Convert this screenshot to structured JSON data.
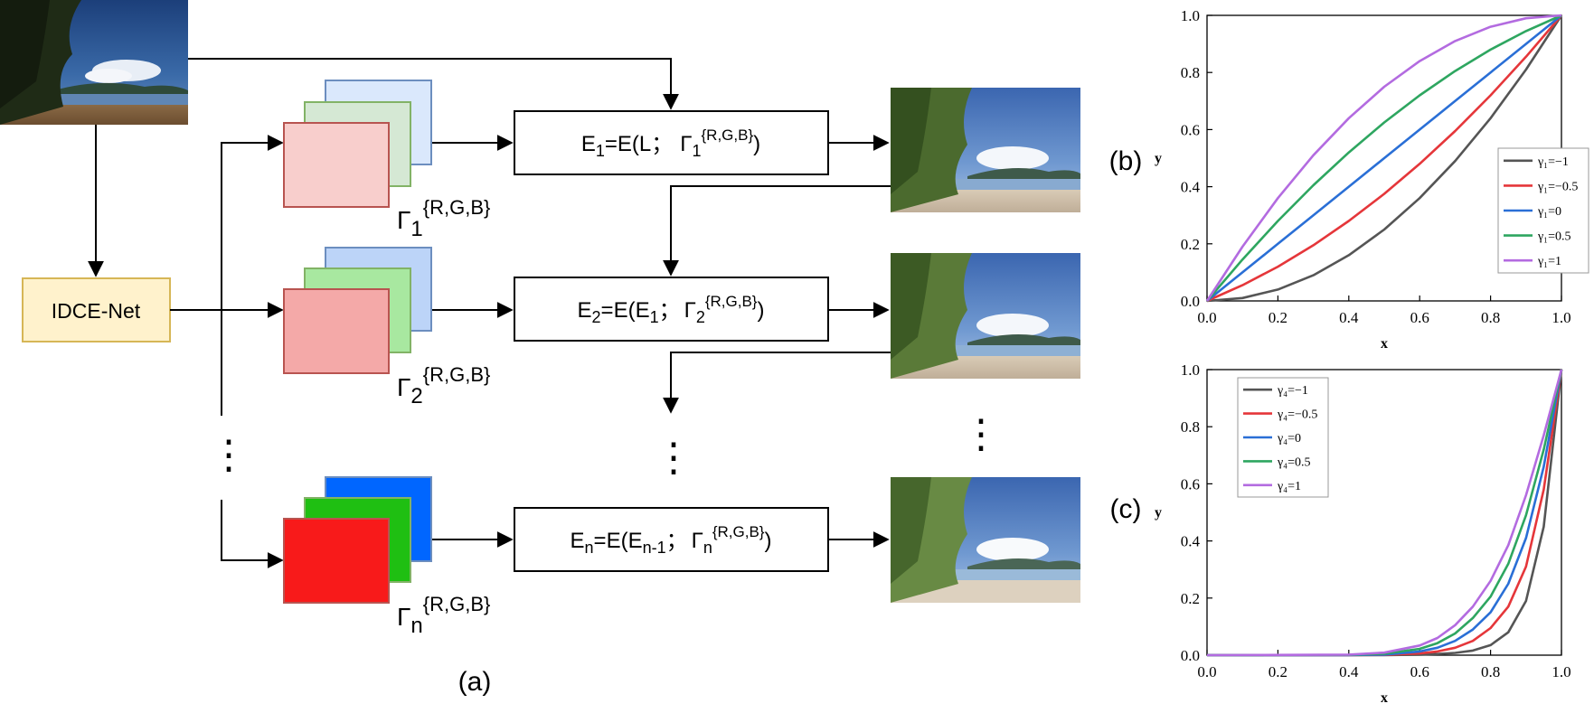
{
  "diagram": {
    "network_label": "IDCE-Net",
    "rows": [
      {
        "gamma_prefix": "Γ",
        "gamma_sub": "1",
        "gamma_sup": "{R,G,B}",
        "eq_e": "E",
        "eq_e_sub": "1",
        "eq_mid": "=E(L；",
        "eq_g": "Γ",
        "eq_g_sub": "1",
        "eq_g_sup": "{R,G,B}",
        "eq_end": ")",
        "colors": {
          "back_fill": "#dae8fc",
          "back_stroke": "#6c8ebf",
          "mid_fill": "#d5e8d4",
          "mid_stroke": "#82b366",
          "front_fill": "#f8cecc",
          "front_stroke": "#b85450"
        }
      },
      {
        "gamma_prefix": "Γ",
        "gamma_sub": "2",
        "gamma_sup": "{R,G,B}",
        "eq_e": "E",
        "eq_e_sub": "2",
        "eq_mid": "=E(E",
        "eq_mid_sub": "1",
        "eq_mid2": "；",
        "eq_g": "Γ",
        "eq_g_sub": "2",
        "eq_g_sup": "{R,G,B}",
        "eq_end": ")",
        "colors": {
          "back_fill": "#bcd4f8",
          "back_stroke": "#6c8ebf",
          "mid_fill": "#a8e8a0",
          "mid_stroke": "#82b366",
          "front_fill": "#f4a9a8",
          "front_stroke": "#b85450"
        }
      },
      {
        "gamma_prefix": "Γ",
        "gamma_sub": "n",
        "gamma_sup": "{R,G,B}",
        "eq_e": "E",
        "eq_e_sub": "n",
        "eq_mid": "=E(E",
        "eq_mid_sub": "n-1",
        "eq_mid2": "；",
        "eq_g": "Γ",
        "eq_g_sub": "n",
        "eq_g_sup": "{R,G,B}",
        "eq_end": ")",
        "colors": {
          "back_fill": "#0066ff",
          "back_stroke": "#6c8ebf",
          "mid_fill": "#1fbf12",
          "mid_stroke": "#82b366",
          "front_fill": "#f81a1a",
          "front_stroke": "#b85450"
        }
      }
    ],
    "dots": "⋮",
    "panel_a_label": "(a)",
    "panel_b_label": "(b)",
    "panel_c_label": "(c)",
    "colors": {
      "network_fill": "#fff2cc",
      "network_stroke": "#d6b656"
    }
  },
  "chart_data": [
    {
      "type": "line",
      "panel": "(b)",
      "title": "",
      "xlabel": "x",
      "ylabel": "y",
      "xlim": [
        0,
        1
      ],
      "ylim": [
        0,
        1
      ],
      "xticks": [
        "0.0",
        "0.2",
        "0.4",
        "0.6",
        "0.8",
        "1.0"
      ],
      "yticks": [
        "0.0",
        "0.2",
        "0.4",
        "0.6",
        "0.8",
        "1.0"
      ],
      "legend_position": "right",
      "x": [
        0,
        0.1,
        0.2,
        0.3,
        0.4,
        0.5,
        0.6,
        0.7,
        0.8,
        0.9,
        1.0
      ],
      "series": [
        {
          "name": "γ₁=−1",
          "color": "#555555",
          "values": [
            0,
            0.01,
            0.04,
            0.09,
            0.16,
            0.25,
            0.36,
            0.49,
            0.64,
            0.81,
            1.0
          ]
        },
        {
          "name": "γ₁=−0.5",
          "color": "#e5363a",
          "values": [
            0,
            0.055,
            0.12,
            0.195,
            0.28,
            0.375,
            0.48,
            0.595,
            0.72,
            0.855,
            1.0
          ]
        },
        {
          "name": "γ₁=0",
          "color": "#2a6fd6",
          "values": [
            0,
            0.1,
            0.2,
            0.3,
            0.4,
            0.5,
            0.6,
            0.7,
            0.8,
            0.9,
            1.0
          ]
        },
        {
          "name": "γ₁=0.5",
          "color": "#2ea660",
          "values": [
            0,
            0.145,
            0.28,
            0.405,
            0.52,
            0.625,
            0.72,
            0.805,
            0.88,
            0.945,
            1.0
          ]
        },
        {
          "name": "γ₁=1",
          "color": "#b36be0",
          "values": [
            0,
            0.19,
            0.36,
            0.51,
            0.64,
            0.75,
            0.84,
            0.91,
            0.96,
            0.99,
            1.0
          ]
        }
      ]
    },
    {
      "type": "line",
      "panel": "(c)",
      "title": "",
      "xlabel": "x",
      "ylabel": "y",
      "xlim": [
        0,
        1
      ],
      "ylim": [
        0,
        1
      ],
      "xticks": [
        "0.0",
        "0.2",
        "0.4",
        "0.6",
        "0.8",
        "1.0"
      ],
      "yticks": [
        "0.0",
        "0.2",
        "0.4",
        "0.6",
        "0.8",
        "1.0"
      ],
      "legend_position": "top-left",
      "x": [
        0,
        0.4,
        0.5,
        0.6,
        0.65,
        0.7,
        0.75,
        0.8,
        0.85,
        0.9,
        0.95,
        1.0
      ],
      "series": [
        {
          "name": "γ₄=−1",
          "color": "#555555",
          "values": [
            0,
            0,
            0,
            0.002,
            0.004,
            0.008,
            0.016,
            0.035,
            0.08,
            0.19,
            0.45,
            1.0
          ]
        },
        {
          "name": "γ₄=−0.5",
          "color": "#e5363a",
          "values": [
            0,
            0,
            0.001,
            0.006,
            0.013,
            0.026,
            0.05,
            0.095,
            0.17,
            0.31,
            0.58,
            1.0
          ]
        },
        {
          "name": "γ₄=0",
          "color": "#2a6fd6",
          "values": [
            0,
            0,
            0.002,
            0.013,
            0.026,
            0.05,
            0.09,
            0.15,
            0.25,
            0.41,
            0.66,
            1.0
          ]
        },
        {
          "name": "γ₄=0.5",
          "color": "#2ea660",
          "values": [
            0,
            0.001,
            0.005,
            0.022,
            0.042,
            0.076,
            0.13,
            0.205,
            0.32,
            0.49,
            0.72,
            1.0
          ]
        },
        {
          "name": "γ₄=1",
          "color": "#b36be0",
          "values": [
            0,
            0.002,
            0.009,
            0.034,
            0.06,
            0.105,
            0.17,
            0.26,
            0.385,
            0.56,
            0.77,
            1.0
          ]
        }
      ]
    }
  ]
}
